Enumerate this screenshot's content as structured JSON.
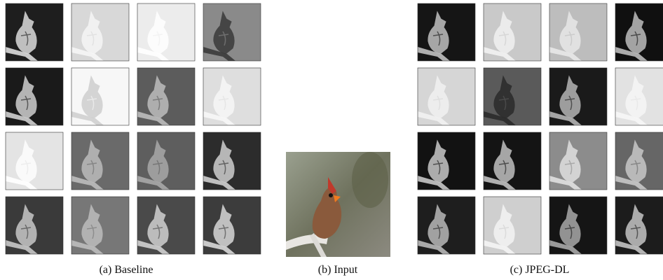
{
  "panels": [
    {
      "caption": "(a) Baseline"
    },
    {
      "caption": "(b) Input"
    },
    {
      "caption": "(c) JPEG-DL"
    }
  ]
}
